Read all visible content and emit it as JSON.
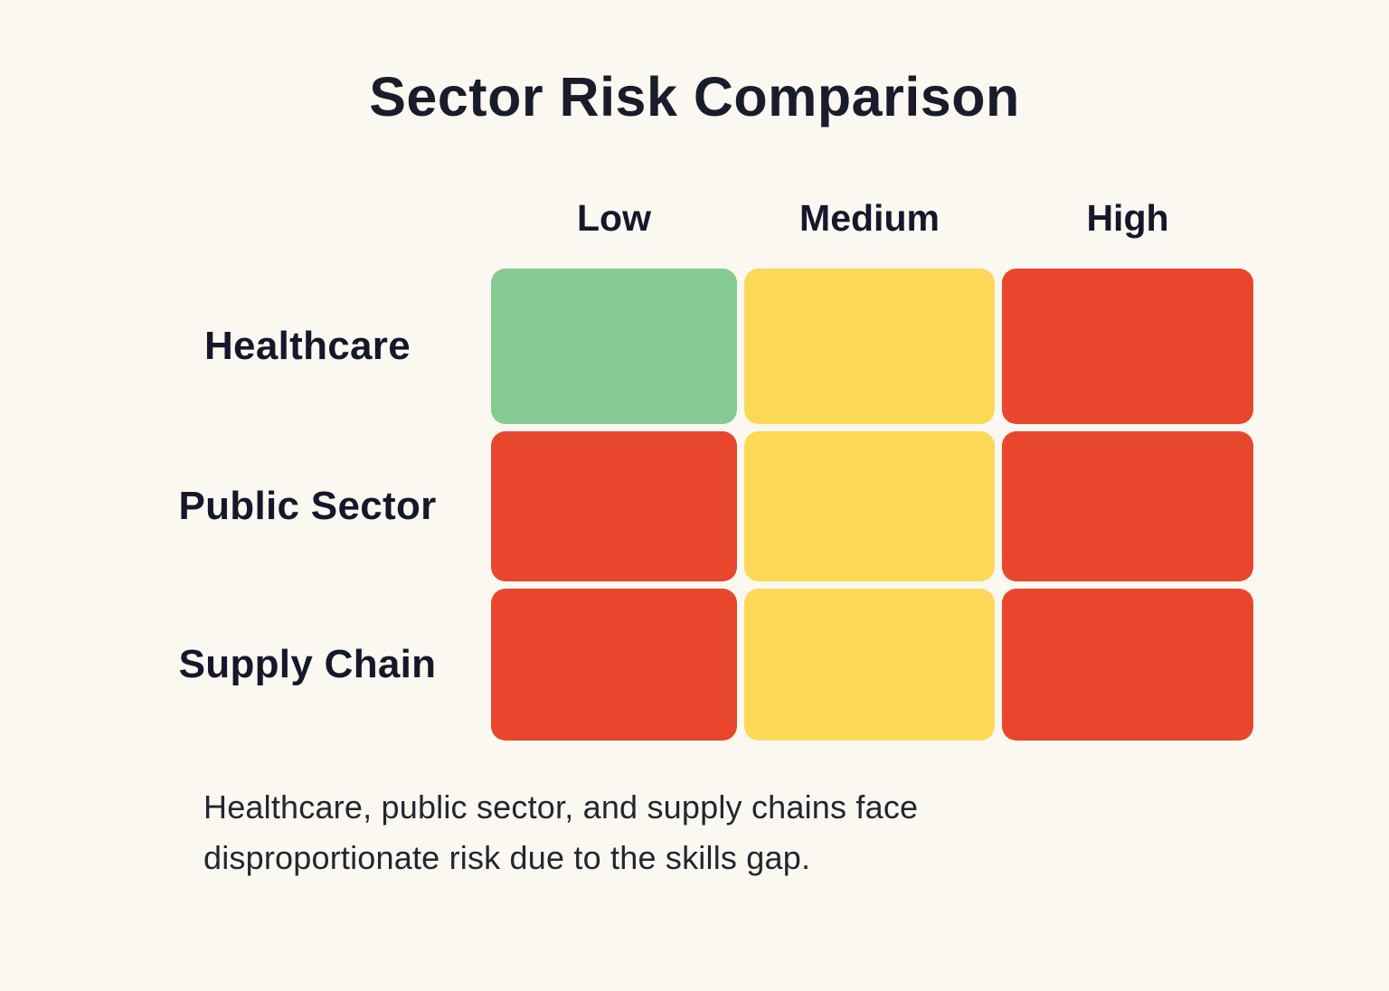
{
  "page": {
    "background_color": "#FAF8F1",
    "text_color": "#1A1D2B"
  },
  "chart_data": {
    "type": "heatmap",
    "title": "Sector Risk Comparison",
    "columns": [
      "Low",
      "Medium",
      "High"
    ],
    "rows": [
      "Healthcare",
      "Public Sector",
      "Supply Chain"
    ],
    "cells": [
      [
        "green",
        "yellow",
        "red"
      ],
      [
        "red",
        "yellow",
        "red"
      ],
      [
        "red",
        "yellow",
        "red"
      ]
    ],
    "colors": {
      "green": "#85CB92",
      "yellow": "#FBD957",
      "red": "#E9462E"
    },
    "legend_position": "none",
    "grid": false,
    "caption": "Healthcare, public sector, and supply chains face disproportionate risk due to the skills gap."
  }
}
